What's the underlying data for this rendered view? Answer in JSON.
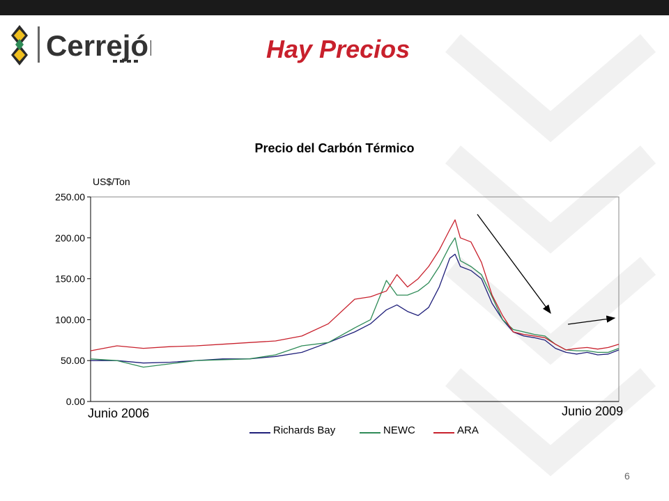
{
  "slide": {
    "title": "Hay Precios",
    "page_number": "6",
    "logo_text": "Cerrejón"
  },
  "annotations": {
    "left_date": "Junio 2006",
    "right_date": "Junio 2009"
  },
  "colors": {
    "title_red": "#c8202c",
    "richards_bay": "#1f1f7a",
    "newc": "#2e8b57",
    "ara": "#c8202c"
  },
  "chart_data": {
    "type": "line",
    "title": "Precio del Carbón Térmico",
    "ylabel": "US$/Ton",
    "xlabel": "",
    "ylim": [
      0,
      250
    ],
    "yticks": [
      "0.00",
      "50.00",
      "100.00",
      "150.00",
      "200.00",
      "250.00"
    ],
    "x_start": "Junio 2006",
    "x_end": "Junio 2009",
    "legend_position": "bottom",
    "grid": false,
    "x": [
      0,
      0.05,
      0.1,
      0.15,
      0.2,
      0.25,
      0.3,
      0.35,
      0.4,
      0.45,
      0.5,
      0.53,
      0.56,
      0.58,
      0.6,
      0.62,
      0.64,
      0.66,
      0.68,
      0.69,
      0.7,
      0.72,
      0.74,
      0.76,
      0.78,
      0.8,
      0.82,
      0.84,
      0.86,
      0.88,
      0.9,
      0.92,
      0.94,
      0.96,
      0.98,
      1.0
    ],
    "series": [
      {
        "name": "Richards Bay",
        "values": [
          50,
          50,
          47,
          48,
          50,
          52,
          52,
          55,
          60,
          72,
          85,
          95,
          112,
          118,
          110,
          105,
          115,
          140,
          175,
          180,
          165,
          160,
          150,
          120,
          100,
          85,
          80,
          78,
          75,
          65,
          60,
          58,
          60,
          57,
          58,
          63
        ]
      },
      {
        "name": "NEWC",
        "values": [
          52,
          50,
          42,
          46,
          50,
          51,
          52,
          57,
          68,
          72,
          90,
          100,
          148,
          130,
          130,
          135,
          145,
          165,
          190,
          200,
          172,
          165,
          155,
          128,
          100,
          88,
          85,
          82,
          80,
          70,
          63,
          62,
          62,
          60,
          60,
          65
        ]
      },
      {
        "name": "ARA",
        "values": [
          62,
          68,
          65,
          67,
          68,
          70,
          72,
          74,
          80,
          95,
          125,
          128,
          135,
          155,
          140,
          150,
          165,
          185,
          210,
          222,
          200,
          195,
          170,
          130,
          105,
          85,
          82,
          80,
          78,
          70,
          63,
          65,
          66,
          64,
          66,
          70
        ]
      }
    ]
  }
}
